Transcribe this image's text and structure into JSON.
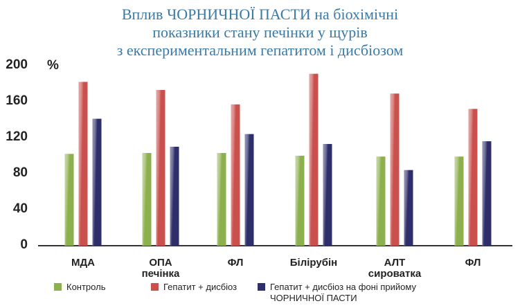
{
  "chart_data": {
    "type": "bar",
    "title": "Вплив ЧОРНИЧНОЇ ПАСТИ на біохімічні\nпоказники стану печінки у щурів\nз експериментальним гепатитом і дисбіозом",
    "y_unit": "%",
    "categories": [
      "МДА",
      "ОПА\nпечінка",
      "ФЛ",
      "Білірубін",
      "АЛТ\nсироватка",
      "ФЛ"
    ],
    "series": [
      {
        "name": "Контроль",
        "color": "#8db04e",
        "values": [
          102,
          103,
          103,
          100,
          99,
          99
        ]
      },
      {
        "name": "Гепатит + дисбіоз",
        "color": "#c9504d",
        "values": [
          182,
          173,
          157,
          191,
          169,
          152
        ]
      },
      {
        "name": "Гепатит + дисбіоз на фоні прийому\nЧОРНИЧНОЇ ПАСТИ",
        "color": "#2e2e6b",
        "values": [
          141,
          110,
          124,
          113,
          84,
          116
        ]
      }
    ],
    "ylim": [
      0,
      200
    ],
    "yticks": [
      0,
      40,
      80,
      120,
      160,
      200
    ],
    "grid": false
  }
}
